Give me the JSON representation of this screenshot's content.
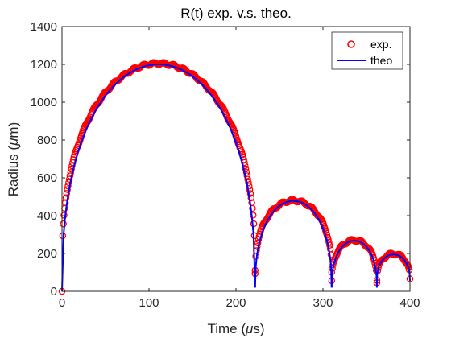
{
  "chart_data": {
    "type": "line",
    "title": "R(t) exp. v.s. theo.",
    "xlabel_main": "Time (",
    "xlabel_mu": "μ",
    "xlabel_unit": "s)",
    "ylabel_main": "Radius (",
    "ylabel_mu": "μ",
    "ylabel_unit": "m)",
    "xlim": [
      0,
      400
    ],
    "ylim": [
      0,
      1400
    ],
    "xticks": [
      0,
      100,
      200,
      300,
      400
    ],
    "yticks": [
      0,
      200,
      400,
      600,
      800,
      1000,
      1200,
      1400
    ],
    "grid": false,
    "legend_position": "top-right",
    "colors": {
      "exp": "#ff0000",
      "theo": "#0000ff",
      "axis": "#262626"
    },
    "series": [
      {
        "name": "exp.",
        "style": "markers-circle",
        "segments": [
          {
            "t0": 0,
            "t1": 222,
            "rmax": 1205,
            "rend": 110
          },
          {
            "t0": 222,
            "t1": 310,
            "rmax": 480,
            "rend": 95
          },
          {
            "t0": 310,
            "t1": 362,
            "rmax": 270,
            "rend": 50
          },
          {
            "t0": 362,
            "t1": 400,
            "rmax": 198,
            "rend": 60
          }
        ]
      },
      {
        "name": "theo",
        "style": "line",
        "segments": [
          {
            "t0": 0,
            "t1": 222,
            "rmax": 1200,
            "rend": 20
          },
          {
            "t0": 222,
            "t1": 310,
            "rmax": 478,
            "rend": 20
          },
          {
            "t0": 310,
            "t1": 362,
            "rmax": 268,
            "rend": 20
          },
          {
            "t0": 362,
            "t1": 400,
            "rmax": 195,
            "rend": 55
          }
        ]
      }
    ]
  }
}
